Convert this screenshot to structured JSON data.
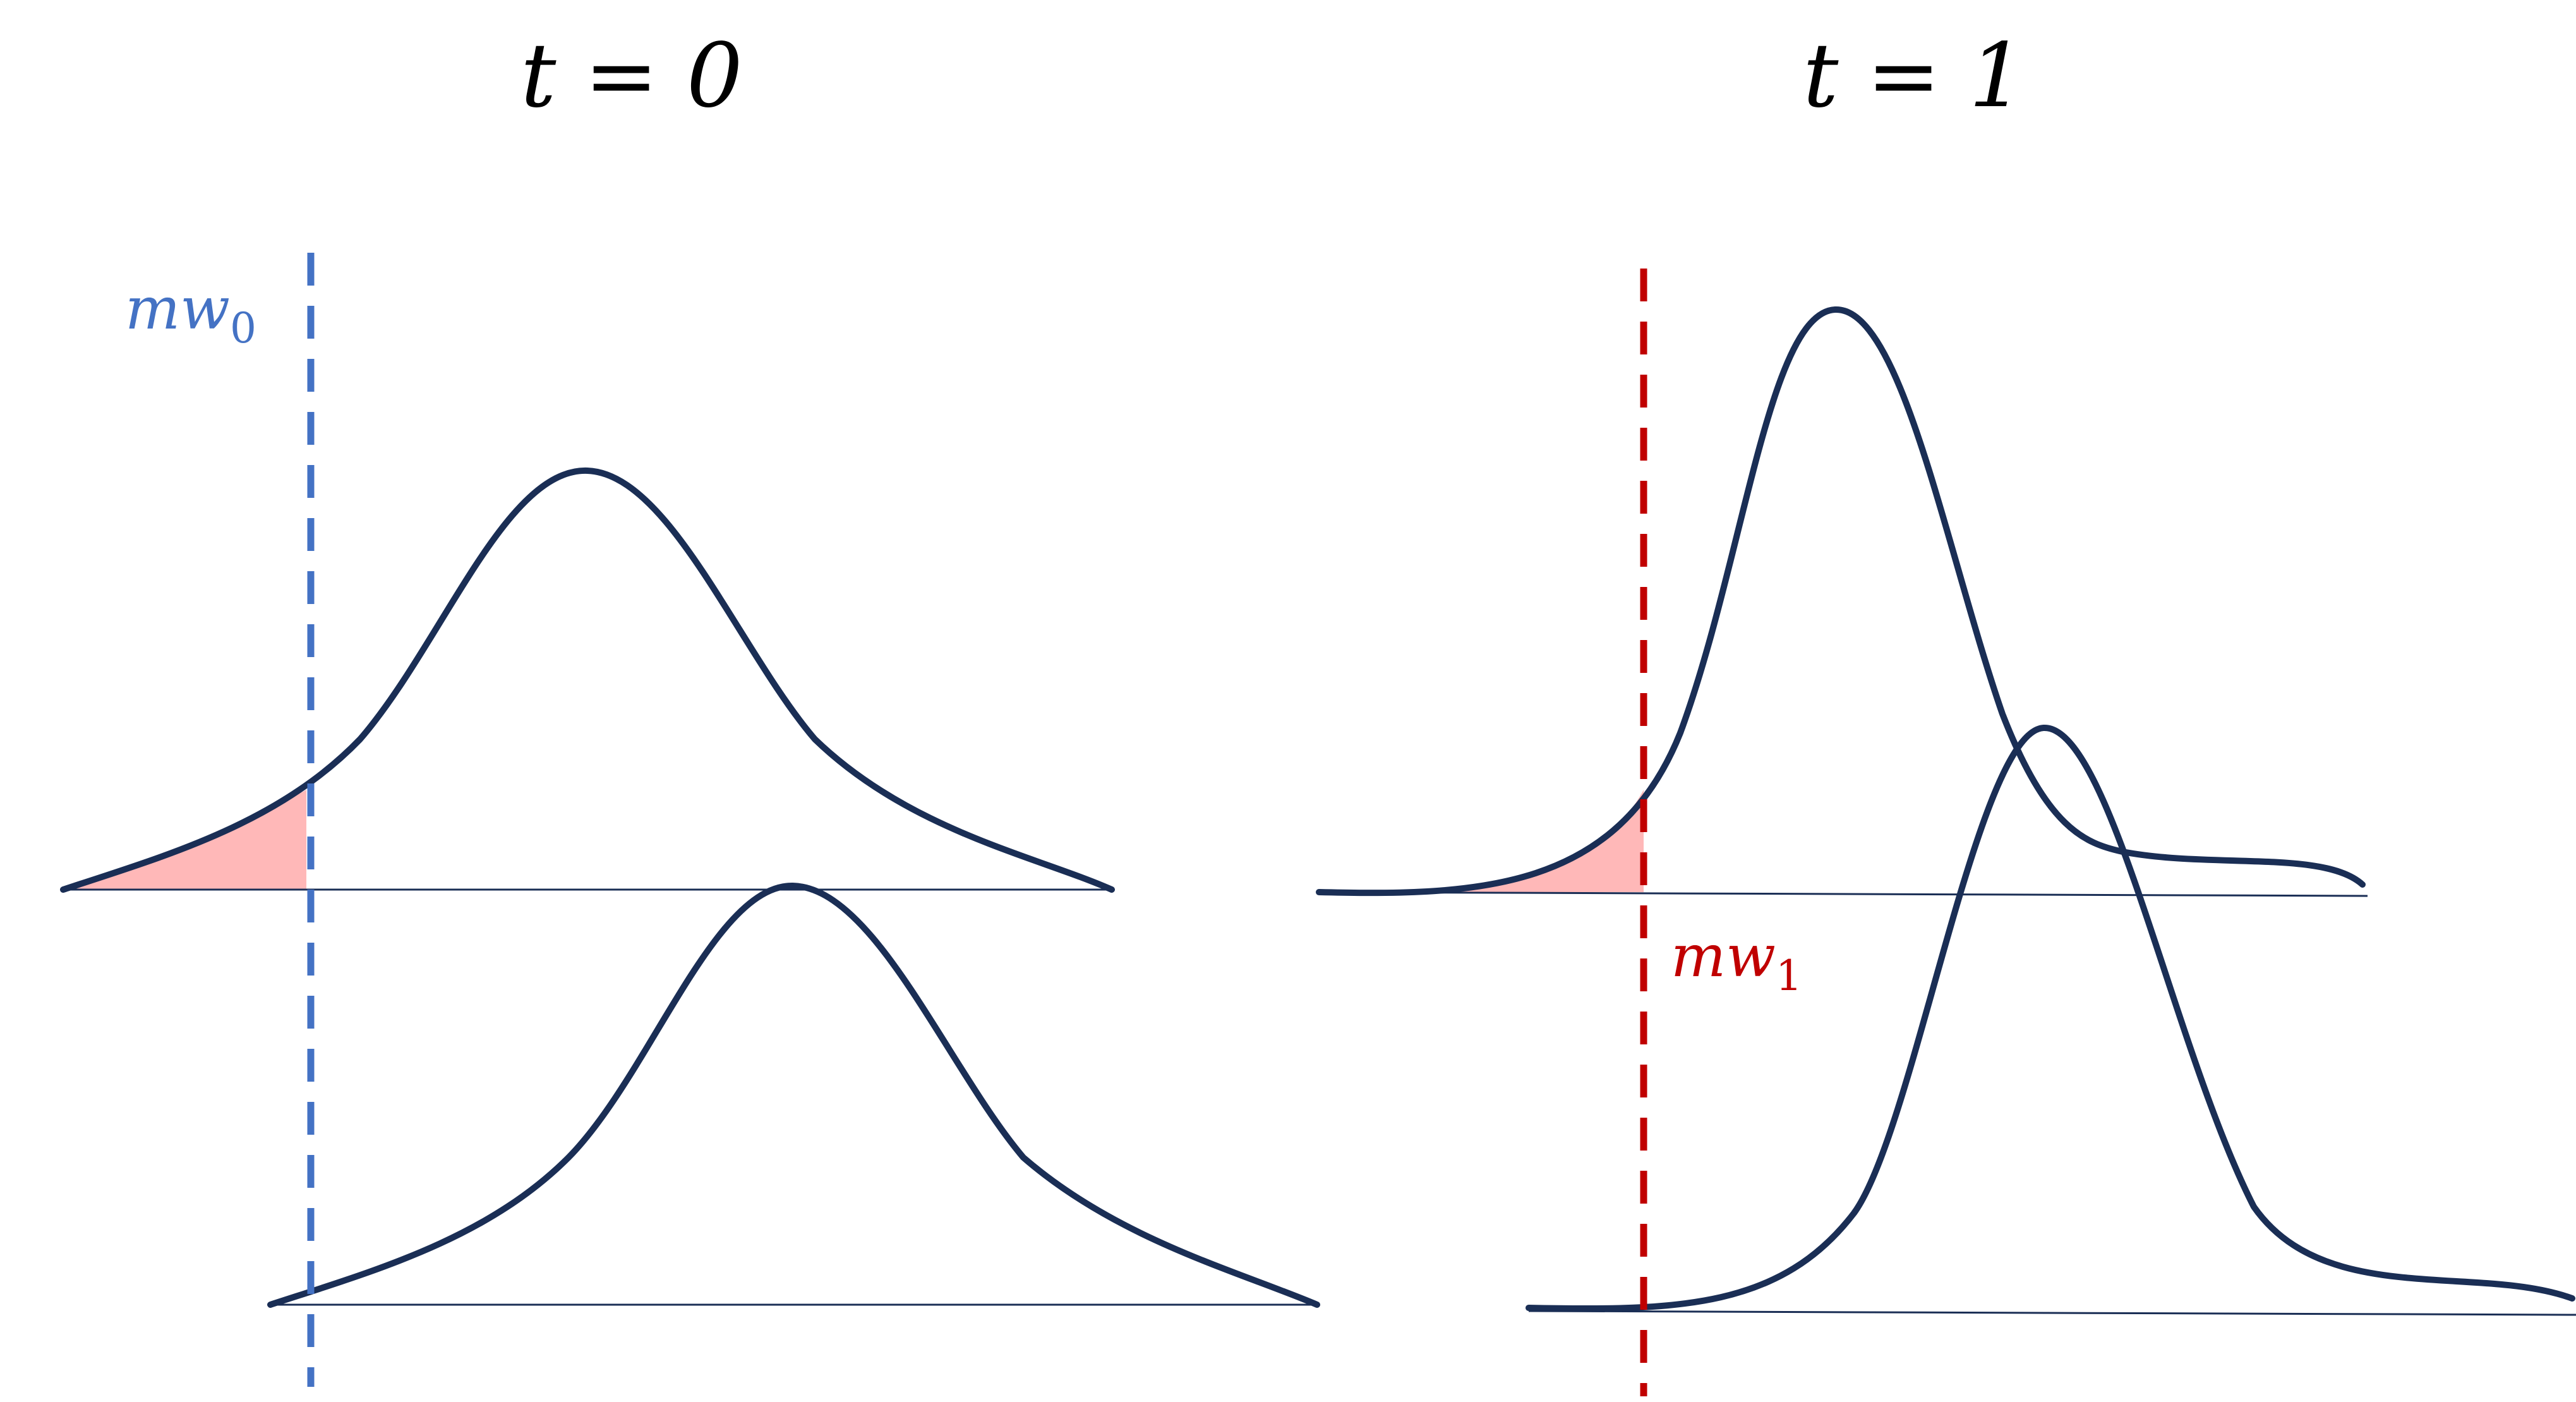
{
  "panels": [
    {
      "title": "t = 0",
      "threshold_label": {
        "main": "mw",
        "sub": "0"
      }
    },
    {
      "title": "t = 1",
      "threshold_label": {
        "main": "mw",
        "sub": "1"
      }
    }
  ],
  "colors": {
    "curve": "#1a2e55",
    "baseline": "#1a2e55",
    "threshold_t0": "#4472c4",
    "threshold_t1": "#c00000",
    "shaded_tail": "#ffb8b8",
    "title": "#000000"
  }
}
